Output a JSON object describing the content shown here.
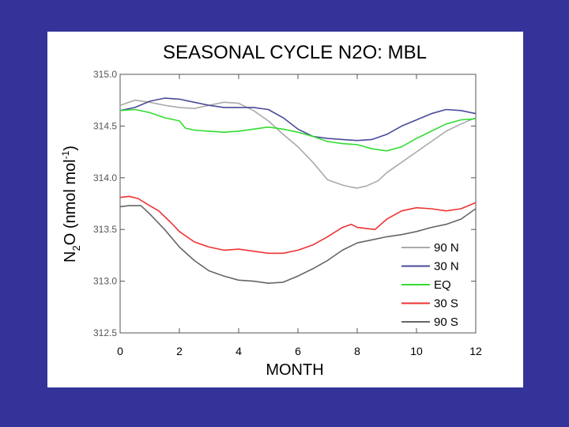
{
  "chart_data": {
    "type": "line",
    "title": "SEASONAL CYCLE N2O: MBL",
    "xlabel": "MONTH",
    "ylabel_main": "N",
    "ylabel_sub": "2",
    "ylabel_mid": "O (nmol mol",
    "ylabel_sup": "-1",
    "ylabel_end": ")",
    "xlim": [
      0,
      12
    ],
    "ylim": [
      312.5,
      315.0
    ],
    "x_ticks": [
      "0",
      "2",
      "4",
      "6",
      "8",
      "10",
      "12"
    ],
    "y_ticks": [
      "312.5",
      "313.0",
      "313.5",
      "314.0",
      "314.5",
      "315.0"
    ],
    "legend_position": "bottom-right",
    "series": [
      {
        "name": "90 N",
        "color": "#aaaaaa",
        "x": [
          0,
          0.5,
          1,
          1.5,
          2,
          2.5,
          3,
          3.5,
          4,
          4.5,
          5,
          5.5,
          6,
          6.5,
          7,
          7.5,
          7.8,
          8,
          8.3,
          8.7,
          9,
          9.5,
          10,
          10.5,
          11,
          11.5,
          12
        ],
        "y": [
          314.7,
          314.75,
          314.73,
          314.7,
          314.68,
          314.67,
          314.7,
          314.73,
          314.72,
          314.65,
          314.55,
          314.42,
          314.3,
          314.15,
          313.98,
          313.93,
          313.91,
          313.9,
          313.92,
          313.97,
          314.05,
          314.15,
          314.25,
          314.35,
          314.45,
          314.52,
          314.58
        ]
      },
      {
        "name": "30 N",
        "color": "#4a4a9a",
        "x": [
          0,
          0.5,
          1,
          1.5,
          2,
          2.5,
          3,
          3.5,
          4,
          4.5,
          5,
          5.5,
          6,
          6.5,
          7,
          7.5,
          8,
          8.5,
          9,
          9.5,
          10,
          10.5,
          11,
          11.5,
          12
        ],
        "y": [
          314.65,
          314.68,
          314.74,
          314.77,
          314.76,
          314.73,
          314.7,
          314.68,
          314.68,
          314.68,
          314.66,
          314.58,
          314.47,
          314.4,
          314.38,
          314.37,
          314.36,
          314.37,
          314.42,
          314.5,
          314.56,
          314.62,
          314.66,
          314.65,
          314.62
        ]
      },
      {
        "name": "EQ",
        "color": "#33dd33",
        "x": [
          0,
          0.5,
          1,
          1.5,
          2,
          2.2,
          2.5,
          3,
          3.5,
          4,
          4.5,
          5,
          5.5,
          6,
          6.5,
          7,
          7.5,
          8,
          8.5,
          9,
          9.5,
          10,
          10.5,
          11,
          11.5,
          12
        ],
        "y": [
          314.65,
          314.66,
          314.63,
          314.58,
          314.55,
          314.48,
          314.46,
          314.45,
          314.44,
          314.45,
          314.47,
          314.49,
          314.47,
          314.44,
          314.4,
          314.35,
          314.33,
          314.32,
          314.28,
          314.26,
          314.3,
          314.38,
          314.45,
          314.52,
          314.56,
          314.57
        ]
      },
      {
        "name": "30 S",
        "color": "#ee3333",
        "x": [
          0,
          0.3,
          0.6,
          1,
          1.3,
          1.7,
          2,
          2.5,
          3,
          3.5,
          4,
          4.5,
          5,
          5.5,
          6,
          6.5,
          7,
          7.5,
          7.8,
          8,
          8.3,
          8.6,
          9,
          9.5,
          10,
          10.5,
          11,
          11.5,
          12
        ],
        "y": [
          313.81,
          313.82,
          313.8,
          313.73,
          313.68,
          313.57,
          313.48,
          313.38,
          313.33,
          313.3,
          313.31,
          313.29,
          313.27,
          313.27,
          313.3,
          313.35,
          313.43,
          313.52,
          313.55,
          313.52,
          313.51,
          313.5,
          313.6,
          313.68,
          313.71,
          313.7,
          313.68,
          313.7,
          313.76
        ]
      },
      {
        "name": "90 S",
        "color": "#666666",
        "x": [
          0,
          0.3,
          0.7,
          1,
          1.5,
          2,
          2.5,
          3,
          3.5,
          4,
          4.5,
          5,
          5.5,
          6,
          6.5,
          7,
          7.5,
          8,
          8.5,
          9,
          9.5,
          10,
          10.5,
          11,
          11.5,
          12
        ],
        "y": [
          313.72,
          313.73,
          313.73,
          313.65,
          313.5,
          313.33,
          313.2,
          313.1,
          313.05,
          313.01,
          313.0,
          312.98,
          312.99,
          313.05,
          313.12,
          313.2,
          313.3,
          313.37,
          313.4,
          313.43,
          313.45,
          313.48,
          313.52,
          313.55,
          313.6,
          313.7
        ]
      }
    ]
  }
}
